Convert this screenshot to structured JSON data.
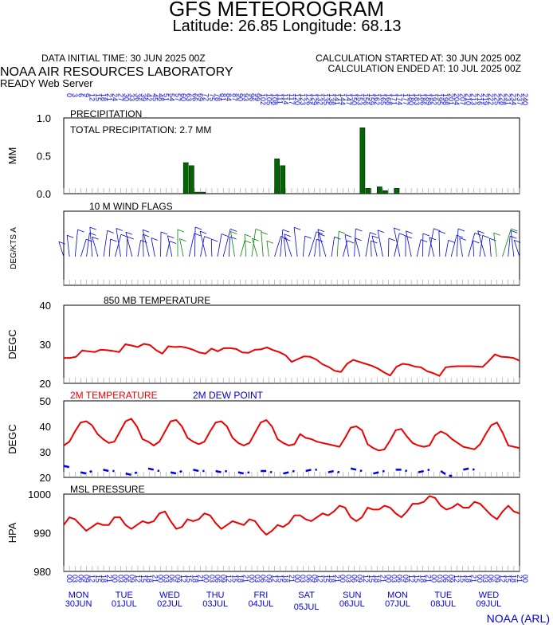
{
  "header": {
    "title": "GFS METEOROGRAM",
    "location": "Latitude: 26.85 Longitude:  68.13",
    "initial_time": "DATA INITIAL TIME: 30 JUN 2025 00Z",
    "calc_started": "CALCULATION STARTED AT: 30 JUN 2025 00Z",
    "calc_ended": "CALCULATION ENDED AT: 10 JUL 2025 00Z",
    "lab": "NOAA AIR RESOURCES LABORATORY",
    "server": "READY Web Server",
    "footer": "NOAA (ARL)"
  },
  "colors": {
    "precip": "#006600",
    "temp": "#ee0000",
    "dew": "#0000dd",
    "wind": "#0000dd",
    "wind_alt": "#008800",
    "text": "#000000",
    "time_labels": "#0000dd"
  },
  "chart_data": [
    {
      "type": "bar",
      "title": "PRECIPITATION",
      "annotation": "TOTAL PRECIPITATION:   2.7 MM",
      "ylabel": "MM",
      "ylim": [
        0,
        1.0
      ],
      "yticks": [
        "0.0",
        "0.5",
        "1.0"
      ],
      "bars": [
        {
          "hour": 63,
          "value": 0.41
        },
        {
          "hour": 66,
          "value": 0.37
        },
        {
          "hour": 69,
          "value": 0.02
        },
        {
          "hour": 72,
          "value": 0.02
        },
        {
          "hour": 111,
          "value": 0.46
        },
        {
          "hour": 114,
          "value": 0.37
        },
        {
          "hour": 156,
          "value": 0.87
        },
        {
          "hour": 159,
          "value": 0.07
        },
        {
          "hour": 165,
          "value": 0.09
        },
        {
          "hour": 168,
          "value": 0.04
        },
        {
          "hour": 174,
          "value": 0.07
        }
      ]
    },
    {
      "type": "wind",
      "title": "10 M  WIND FLAGS",
      "ylabel": "DEG/KTS  A"
    },
    {
      "type": "line",
      "title": "850 MB  TEMPERATURE",
      "ylabel": "DEGC",
      "ylim": [
        20,
        40
      ],
      "yticks": [
        "20",
        "30",
        "40"
      ],
      "series": [
        {
          "values": [
            26.5,
            26.5,
            26.8,
            28.4,
            28.2,
            28.0,
            28.6,
            28.5,
            28.3,
            28.0,
            30.0,
            29.7,
            29.3,
            30.1,
            29.8,
            28.5,
            27.6,
            29.5,
            29.3,
            29.4,
            29.1,
            28.6,
            27.9,
            27.6,
            28.9,
            28.2,
            29.0,
            29.0,
            28.8,
            27.9,
            27.8,
            28.6,
            28.7,
            29.2,
            28.5,
            28.0,
            27.2,
            25.5,
            26.2,
            26.9,
            26.8,
            26.1,
            24.9,
            24.2,
            23.2,
            22.9,
            25.0,
            26.0,
            25.5,
            25.0,
            24.5,
            23.8,
            22.8,
            22.0,
            24.2,
            25.0,
            24.8,
            24.3,
            24.1,
            23.1,
            22.6,
            21.9,
            24.1,
            24.3,
            24.4,
            24.4,
            24.4,
            24.3,
            24.2,
            25.7,
            27.4,
            26.8,
            26.7,
            26.5,
            25.8
          ]
        }
      ]
    },
    {
      "type": "line",
      "title": "2M TEMPERATURE",
      "title2": "2M  DEW POINT",
      "ylabel": "DEGC",
      "ylim": [
        20,
        50
      ],
      "yticks": [
        "20",
        "30",
        "40",
        "50"
      ],
      "series": [
        {
          "name": "2M TEMPERATURE",
          "values": [
            32.5,
            34.0,
            38.0,
            41.5,
            42.0,
            40.5,
            37.0,
            35.0,
            33.5,
            34.0,
            38.0,
            42.0,
            43.0,
            40.0,
            35.0,
            34.0,
            32.5,
            34.0,
            38.0,
            42.0,
            42.5,
            40.0,
            35.5,
            34.0,
            33.0,
            34.0,
            38.0,
            41.5,
            42.0,
            40.0,
            35.5,
            33.5,
            32.5,
            33.5,
            37.5,
            41.5,
            42.5,
            40.0,
            35.0,
            33.5,
            32.5,
            33.0,
            37.0,
            35.5,
            35.0,
            34.0,
            33.5,
            33.0,
            32.5,
            32.0,
            35.5,
            39.5,
            40.0,
            38.5,
            33.0,
            31.5,
            30.5,
            31.0,
            34.5,
            38.5,
            39.0,
            36.0,
            33.5,
            32.5,
            32.0,
            32.5,
            36.5,
            38.0,
            37.0,
            35.0,
            33.5,
            32.0,
            31.5,
            31.0,
            33.0,
            37.0,
            40.5,
            41.5,
            37.5,
            32.5,
            32.0,
            31.5
          ]
        },
        {
          "name": "2M  DEW POINT",
          "values": [
            24.5,
            24.0,
            null,
            22.0,
            21.5,
            22.5,
            null,
            23.0,
            22.5,
            22.5,
            null,
            21.5,
            21.0,
            22.0,
            null,
            23.5,
            23.0,
            22.5,
            null,
            22.0,
            21.5,
            22.5,
            null,
            23.0,
            22.5,
            22.5,
            null,
            22.5,
            22.0,
            22.5,
            null,
            22.0,
            21.5,
            22.0,
            null,
            22.5,
            22.5,
            22.0,
            null,
            21.5,
            22.0,
            22.5,
            null,
            22.5,
            23.0,
            23.0,
            null,
            22.0,
            22.5,
            22.0,
            null,
            23.5,
            23.0,
            22.5,
            null,
            21.5,
            22.0,
            22.5,
            null,
            23.0,
            23.0,
            22.5,
            null,
            22.0,
            22.5,
            23.0,
            null,
            22.5,
            21.0,
            20.5,
            null,
            23.0,
            23.5,
            23.0,
            null,
            null,
            null,
            null,
            null,
            null,
            null,
            null
          ]
        }
      ]
    },
    {
      "type": "line",
      "title": "MSL PRESSURE",
      "ylabel": "HPA",
      "ylim": [
        980,
        1000
      ],
      "yticks": [
        "980",
        "990",
        "1000"
      ],
      "series": [
        {
          "values": [
            992.0,
            994.0,
            993.5,
            992.0,
            990.5,
            991.5,
            992.5,
            992.0,
            992.0,
            994.0,
            994.0,
            992.0,
            991.0,
            992.0,
            993.0,
            992.5,
            993.0,
            995.0,
            995.5,
            993.0,
            991.0,
            991.5,
            993.5,
            993.0,
            993.5,
            995.0,
            994.5,
            992.5,
            991.0,
            992.0,
            993.0,
            992.5,
            992.0,
            993.5,
            993.0,
            991.0,
            989.5,
            990.5,
            992.0,
            991.5,
            992.5,
            994.5,
            994.5,
            993.5,
            993.0,
            994.0,
            995.0,
            994.5,
            995.5,
            997.0,
            996.5,
            994.0,
            993.0,
            994.0,
            996.5,
            996.0,
            996.0,
            997.0,
            996.5,
            995.0,
            994.0,
            995.5,
            997.5,
            997.5,
            998.0,
            999.5,
            999.0,
            997.0,
            996.0,
            996.5,
            997.5,
            996.5,
            996.5,
            998.0,
            997.5,
            996.0,
            994.5,
            993.5,
            995.5,
            997.0,
            995.5,
            995.0
          ]
        }
      ]
    }
  ],
  "time_axis": {
    "hours_top": [
      "0",
      "3",
      "6",
      "9",
      "12",
      "15",
      "18",
      "21",
      "24",
      "27",
      "30",
      "33",
      "36",
      "39",
      "42",
      "45",
      "48",
      "51",
      "54",
      "57",
      "60",
      "63",
      "66",
      "69",
      "72",
      "75",
      "78",
      "81",
      "84",
      "87",
      "90",
      "93",
      "96",
      "99",
      "102",
      "105",
      "108",
      "111",
      "114",
      "117",
      "120",
      "123",
      "126",
      "129",
      "132",
      "135",
      "138",
      "141",
      "144",
      "147",
      "150",
      "153",
      "156",
      "159",
      "162",
      "165",
      "168",
      "171",
      "174",
      "177",
      "180",
      "183",
      "186",
      "189",
      "192",
      "195",
      "198",
      "201",
      "204",
      "207",
      "210",
      "213",
      "216",
      "219",
      "222",
      "225",
      "228",
      "231",
      "234",
      "237",
      "240"
    ],
    "hours_bottom": [
      "00",
      "03",
      "06",
      "09",
      "12",
      "15",
      "18",
      "21",
      "00",
      "03",
      "06",
      "09",
      "12",
      "15",
      "18",
      "21",
      "00",
      "03",
      "06",
      "09",
      "12",
      "15",
      "18",
      "21",
      "00",
      "03",
      "06",
      "09",
      "12",
      "15",
      "18",
      "21",
      "00",
      "03",
      "06",
      "09",
      "12",
      "15",
      "18",
      "21",
      "00",
      "03",
      "06",
      "09",
      "12",
      "15",
      "18",
      "21",
      "00",
      "03",
      "06",
      "09",
      "12",
      "15",
      "18",
      "21",
      "00",
      "03",
      "06",
      "09",
      "12",
      "15",
      "18",
      "21",
      "00",
      "03",
      "06",
      "09",
      "12",
      "15",
      "18",
      "21",
      "00",
      "03",
      "06",
      "09",
      "12",
      "15",
      "18",
      "21",
      "00"
    ],
    "days": [
      {
        "dow": "MON",
        "date": "30JUN"
      },
      {
        "dow": "TUE",
        "date": "01JUL"
      },
      {
        "dow": "WED",
        "date": "02JUL"
      },
      {
        "dow": "THU",
        "date": "03JUL"
      },
      {
        "dow": "FRI",
        "date": "04JUL"
      },
      {
        "dow": "SAT",
        "date": "05JUL"
      },
      {
        "dow": "SUN",
        "date": "06JUL"
      },
      {
        "dow": "MON",
        "date": "07JUL"
      },
      {
        "dow": "TUE",
        "date": "08JUL"
      },
      {
        "dow": "WED",
        "date": "09JUL"
      }
    ]
  }
}
